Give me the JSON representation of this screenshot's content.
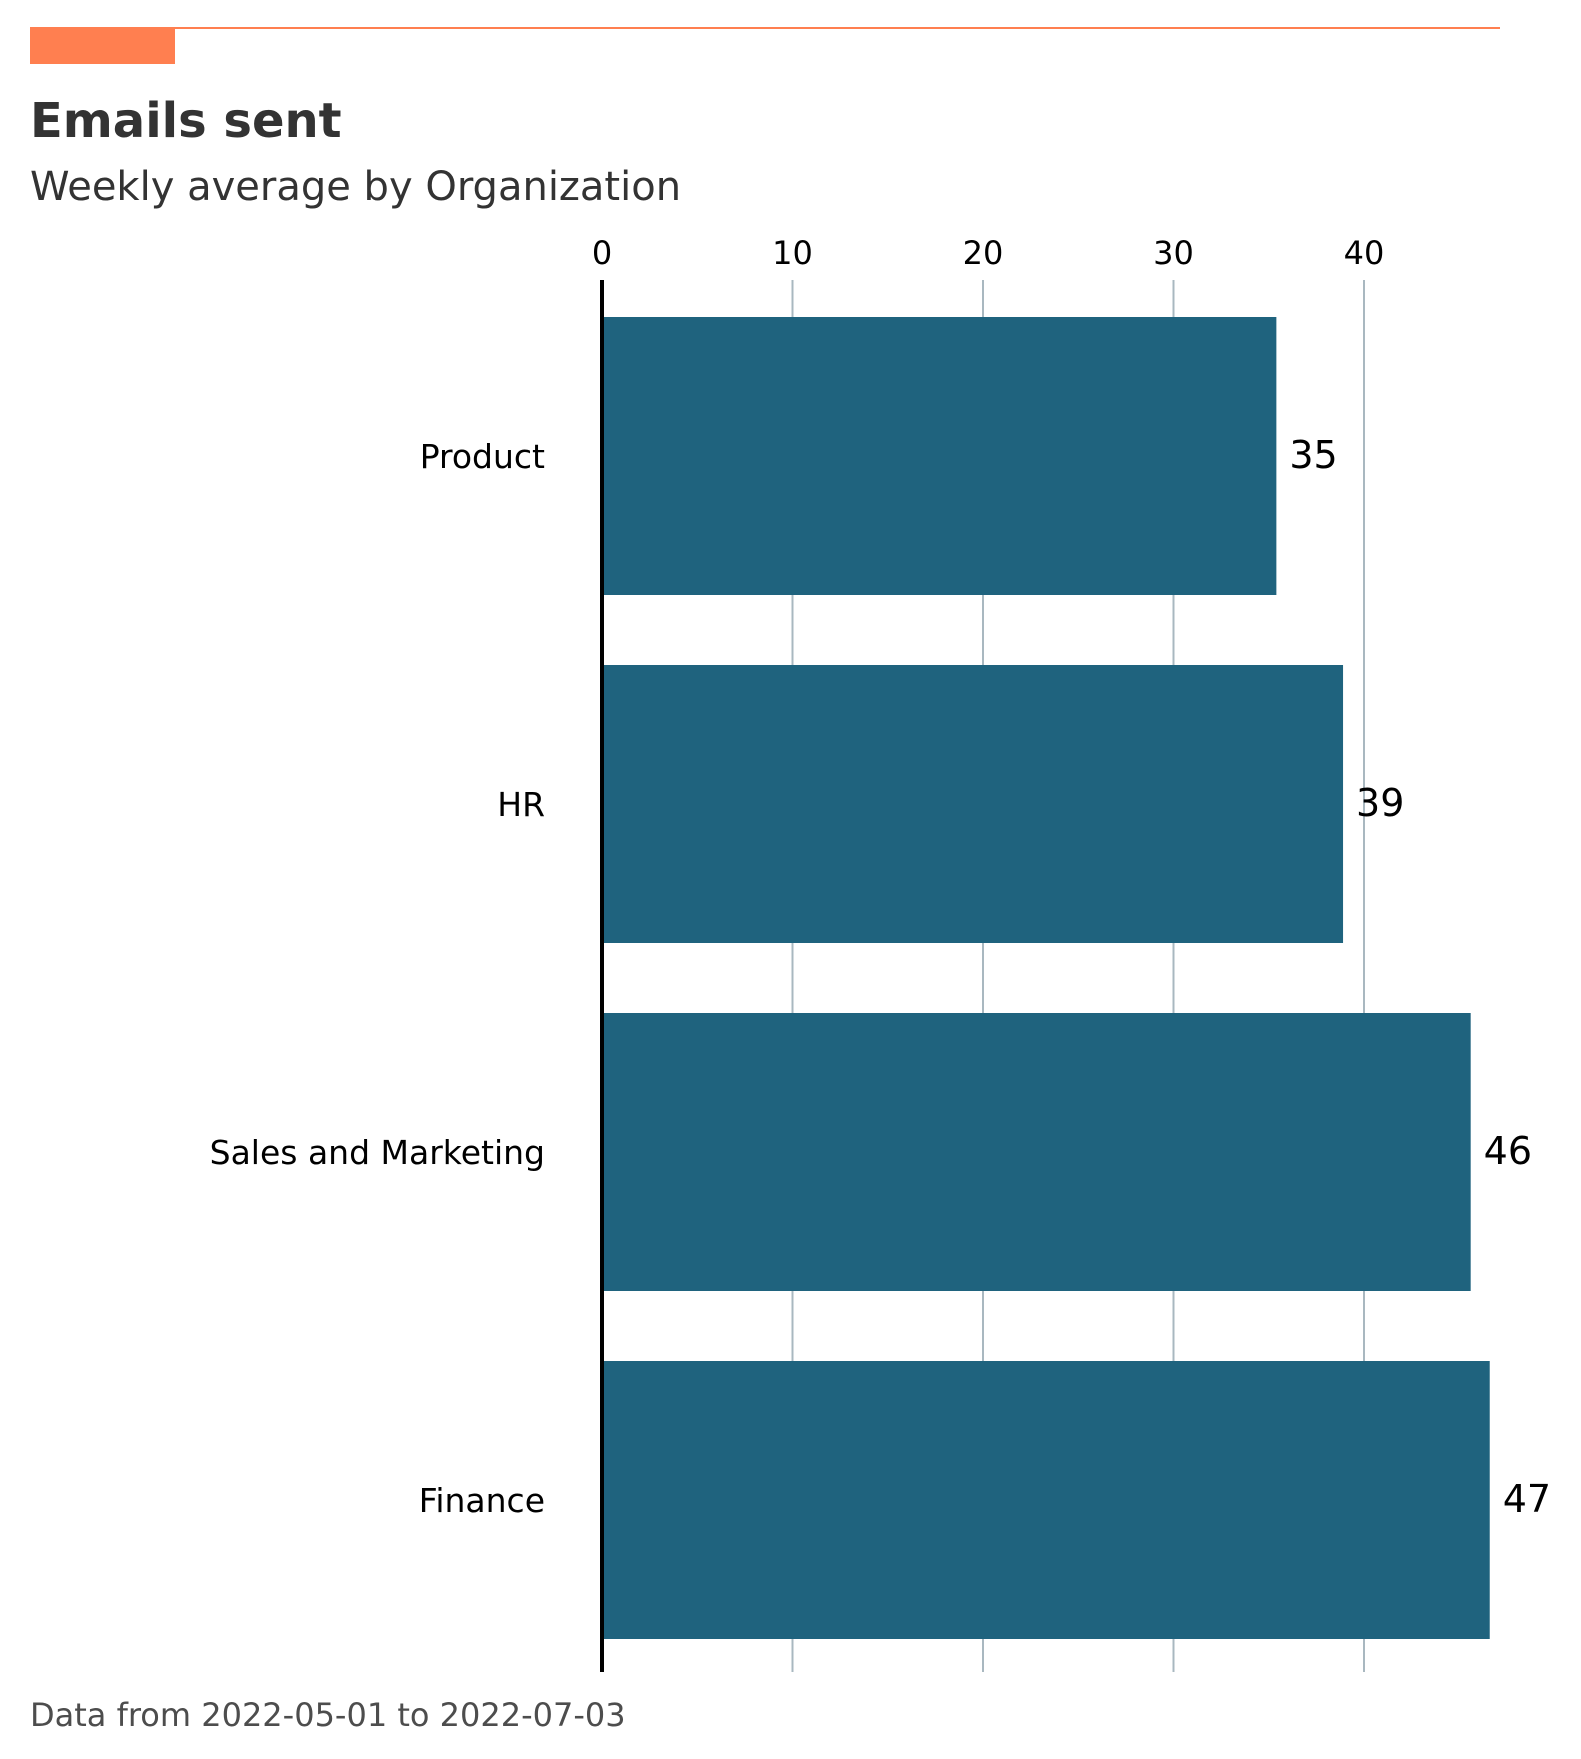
{
  "chart_data": {
    "type": "bar",
    "orientation": "horizontal",
    "title": "Emails sent",
    "subtitle": "Weekly average by Organization",
    "categories": [
      "Product",
      "HR",
      "Sales and Marketing",
      "Finance"
    ],
    "values": [
      35.4,
      38.9,
      45.6,
      46.6
    ],
    "value_labels": [
      "35",
      "39",
      "46",
      "47"
    ],
    "x_ticks": [
      "0",
      "10",
      "20",
      "30",
      "40"
    ],
    "xlim": [
      0,
      47.5
    ],
    "grid": true,
    "footnote": "Data from 2022-05-01 to 2022-07-03"
  },
  "colors": {
    "bar": "#1f637e",
    "accent": "#ff7f50",
    "grid": "#a9b8c0",
    "axis": "#000000"
  }
}
